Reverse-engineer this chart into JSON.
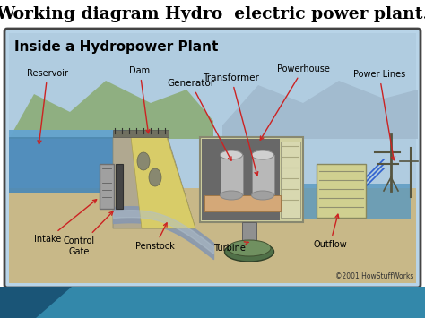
{
  "title": "Working diagram Hydro  electric power plant.",
  "title_fontsize": 13.5,
  "title_bold": true,
  "title_color": "#000000",
  "bg_color": "#ffffff",
  "panel_title": "Inside a Hydropower Plant",
  "panel_title_size": 11,
  "panel_border_color": "#444444",
  "copyright": "©2001 HowStuffWorks",
  "sky_color_top": "#b8d4e8",
  "sky_color_bot": "#c8e0e8",
  "mountain_left_color": "#8aaa78",
  "mountain_right_color": "#a0b4c8",
  "ground_color": "#c8b888",
  "water_left_color": "#5090c0",
  "water_right_color": "#60a0c8",
  "penstock_color": "#7090a8",
  "dam_face_color": "#d8cc70",
  "dam_body_color": "#b8b898",
  "powerhouse_wall_color": "#d4d4a0",
  "powerhouse_inside_color": "#707070",
  "generator_color": "#c0c0c0",
  "turbine_color": "#507040",
  "arrow_color": "#cc2222",
  "label_color": "#000000",
  "bottom_strip_color1": "#3388aa",
  "bottom_strip_color2": "#2266aa"
}
